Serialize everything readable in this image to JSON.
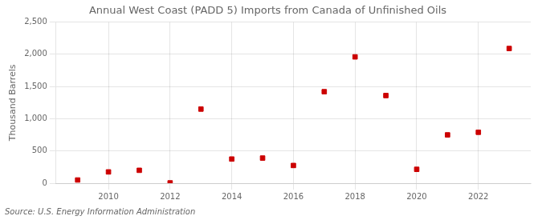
{
  "chart_data": {
    "type": "scatter",
    "title": "Annual West Coast (PADD 5) Imports from Canada of Unfinished Oils",
    "ylabel": "Thousand Barrels",
    "source": "Source: U.S. Energy Information Administration",
    "x": [
      2009,
      2010,
      2011,
      2012,
      2013,
      2014,
      2015,
      2016,
      2017,
      2018,
      2019,
      2020,
      2021,
      2022,
      2023
    ],
    "values": [
      50,
      175,
      200,
      5,
      1150,
      375,
      390,
      275,
      1420,
      1960,
      1360,
      215,
      750,
      790,
      2090
    ],
    "color": "#cc0000",
    "marker": "square",
    "xlim": [
      2008.3,
      2023.7
    ],
    "xticks": [
      2010,
      2012,
      2014,
      2016,
      2018,
      2020,
      2022
    ],
    "ylim": [
      0,
      2500
    ],
    "yticks": [
      0,
      500,
      {
        "value": 1000,
        "label": "1,000"
      },
      {
        "value": 1500,
        "label": "1,500"
      },
      {
        "value": 2000,
        "label": "2,000"
      },
      {
        "value": 2500,
        "label": "2,500"
      }
    ],
    "grid": true
  }
}
